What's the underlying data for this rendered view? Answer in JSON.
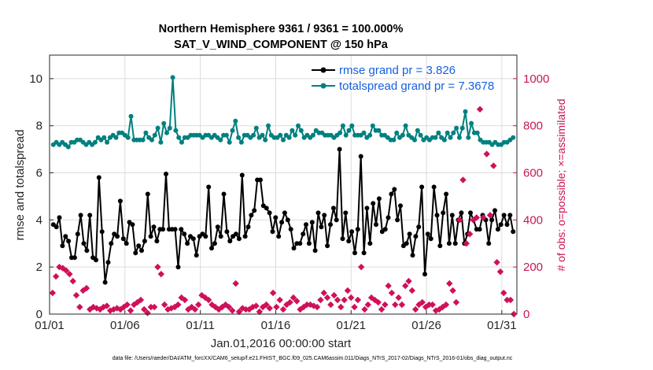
{
  "chart_data": {
    "type": "line",
    "title": "Northern Hemisphere 9361 / 9361 = 100.000%",
    "subtitle": "SAT_V_WIND_COMPONENT @ 150 hPa",
    "xlabel": "Jan.01,2016 00:00:00 start",
    "ylabel": "rmse and totalspread",
    "y2label": "# of obs: o=possible; ×=assimilated",
    "x_ticks": [
      "01/01",
      "01/06",
      "01/11",
      "01/16",
      "01/21",
      "01/26",
      "01/31"
    ],
    "x_tick_days": [
      1,
      6,
      11,
      16,
      21,
      26,
      31
    ],
    "y_ticks": [
      "0",
      "2",
      "4",
      "6",
      "8",
      "10"
    ],
    "y2_ticks": [
      "0",
      "200",
      "400",
      "600",
      "800",
      "1000"
    ],
    "xlim_days": [
      1,
      32
    ],
    "ylim": [
      0,
      11
    ],
    "y2lim": [
      0,
      1100
    ],
    "legend_position": "top-right",
    "grid": true,
    "series": [
      {
        "name": "rmse grand pr = 3.826",
        "color": "#000000",
        "axis": "left",
        "values": [
          3.8,
          3.7,
          4.1,
          2.9,
          3.3,
          3.1,
          2.4,
          2.4,
          3.4,
          4.2,
          3.0,
          2.7,
          4.2,
          2.4,
          2.3,
          5.8,
          3.5,
          1.35,
          2.2,
          3.0,
          3.4,
          3.3,
          4.8,
          3.2,
          3.0,
          3.9,
          3.8,
          2.6,
          2.9,
          2.7,
          3.1,
          5.1,
          3.3,
          3.7,
          3.1,
          3.6,
          3.6,
          5.95,
          3.6,
          3.6,
          3.6,
          2.0,
          3.6,
          3.4,
          3.0,
          3.3,
          3.2,
          2.5,
          3.3,
          3.4,
          3.3,
          5.4,
          2.8,
          3.0,
          3.7,
          3.3,
          5.1,
          3.5,
          3.1,
          3.3,
          3.4,
          3.2,
          5.9,
          3.3,
          3.7,
          4.2,
          4.4,
          5.7,
          5.7,
          4.6,
          4.5,
          4.3,
          3.5,
          4.1,
          3.3,
          3.9,
          4.3,
          4.0,
          3.6,
          2.8,
          3.0,
          3.0,
          3.4,
          3.8,
          3.0,
          3.9,
          2.7,
          4.3,
          3.7,
          4.2,
          2.9,
          3.8,
          4.5,
          4.0,
          7.0,
          3.2,
          4.3,
          3.1,
          3.5,
          2.6,
          3.6,
          6.7,
          2.6,
          4.5,
          3.0,
          4.7,
          3.8,
          4.9,
          3.5,
          3.6,
          4.1,
          5.1,
          5.3,
          4.0,
          4.6,
          2.9,
          3.0,
          3.4,
          2.5,
          3.3,
          3.7,
          5.4,
          1.7,
          3.4,
          3.2,
          5.4,
          4.2,
          2.9,
          4.3,
          5.1,
          3.0,
          4.2,
          3.0,
          4.0,
          4.3,
          3.0,
          3.4,
          4.3,
          4.0,
          3.6,
          3.6,
          4.2,
          4.0,
          3.0,
          4.0,
          4.4,
          3.6,
          3.8,
          4.2,
          3.8,
          4.2,
          3.5
        ]
      },
      {
        "name": "totalspread grand pr = 7.3678",
        "color": "#008080",
        "axis": "left",
        "values": [
          7.2,
          7.3,
          7.2,
          7.3,
          7.2,
          7.1,
          7.3,
          7.3,
          7.4,
          7.4,
          7.3,
          7.2,
          7.3,
          7.2,
          7.3,
          7.5,
          7.4,
          7.5,
          7.3,
          7.5,
          7.6,
          7.5,
          7.7,
          7.7,
          7.6,
          7.5,
          8.4,
          7.4,
          7.4,
          7.4,
          7.4,
          7.7,
          7.5,
          7.4,
          7.6,
          7.9,
          7.3,
          8.1,
          7.7,
          7.9,
          10.05,
          7.8,
          7.5,
          7.3,
          7.5,
          7.5,
          7.6,
          7.6,
          7.6,
          7.6,
          7.5,
          7.6,
          7.6,
          7.5,
          7.6,
          7.5,
          7.4,
          7.6,
          7.6,
          7.3,
          7.8,
          8.2,
          7.5,
          7.3,
          7.6,
          7.6,
          7.5,
          7.6,
          7.9,
          7.5,
          7.6,
          7.4,
          8.0,
          7.6,
          7.5,
          7.5,
          7.6,
          7.4,
          7.6,
          7.5,
          7.8,
          7.6,
          8.0,
          7.8,
          7.5,
          7.6,
          7.5,
          7.6,
          7.8,
          7.7,
          7.7,
          7.6,
          7.6,
          7.6,
          7.5,
          7.6,
          7.7,
          8.0,
          7.6,
          7.8,
          8.0,
          7.6,
          7.6,
          7.6,
          7.7,
          7.5,
          7.6,
          8.0,
          7.8,
          7.8,
          7.6,
          7.6,
          7.5,
          7.4,
          7.4,
          7.7,
          7.5,
          7.6,
          8.0,
          7.6,
          7.5,
          7.4,
          7.8,
          7.6,
          7.4,
          7.5,
          7.4,
          7.5,
          7.5,
          7.7,
          7.5,
          7.4,
          7.7,
          7.5,
          7.7,
          7.9,
          7.5,
          7.9,
          8.6,
          7.5,
          8.1,
          7.7,
          7.7,
          7.4,
          7.3,
          7.3,
          7.3,
          7.2,
          7.3,
          7.2,
          7.2,
          7.3,
          7.3,
          7.4,
          7.5
        ]
      },
      {
        "name": "obs possible",
        "color": "#d0105a",
        "axis": "right",
        "values": [
          90,
          160,
          200,
          195,
          185,
          170,
          140,
          80,
          30,
          100,
          110,
          20,
          30,
          25,
          20,
          30,
          35,
          15,
          20,
          25,
          20,
          30,
          40,
          15,
          40,
          50,
          60,
          20,
          5,
          30,
          30,
          200,
          170,
          40,
          20,
          25,
          30,
          40,
          70,
          60,
          20,
          30,
          20,
          40,
          80,
          70,
          60,
          40,
          30,
          20,
          30,
          40,
          30,
          15,
          130,
          10,
          25,
          20,
          20,
          30,
          35,
          10,
          30,
          40,
          25,
          90,
          30,
          60,
          20,
          40,
          50,
          70,
          55,
          20,
          30,
          40,
          40,
          35,
          30,
          60,
          90,
          70,
          40,
          80,
          60,
          30,
          60,
          100,
          70,
          30,
          60,
          200,
          20,
          40,
          70,
          60,
          50,
          20,
          40,
          120,
          90,
          40,
          70,
          40,
          120,
          140,
          100,
          20,
          40,
          50,
          30,
          40,
          40,
          15,
          20,
          30,
          40,
          130,
          100,
          50,
          400,
          570,
          300,
          340,
          400,
          410,
          870,
          410,
          680,
          420,
          630,
          220,
          180,
          90,
          60,
          60,
          0
        ]
      }
    ]
  },
  "footer": "data file: /Users/raeder/DAI/ATM_forcXX/CAM6_setup/f.e21.FHIST_BGC.f09_025.CAM6assim.011/Diags_NTrS_2017-02/Diags_NTrS_2016-01/obs_diag_output.nc"
}
